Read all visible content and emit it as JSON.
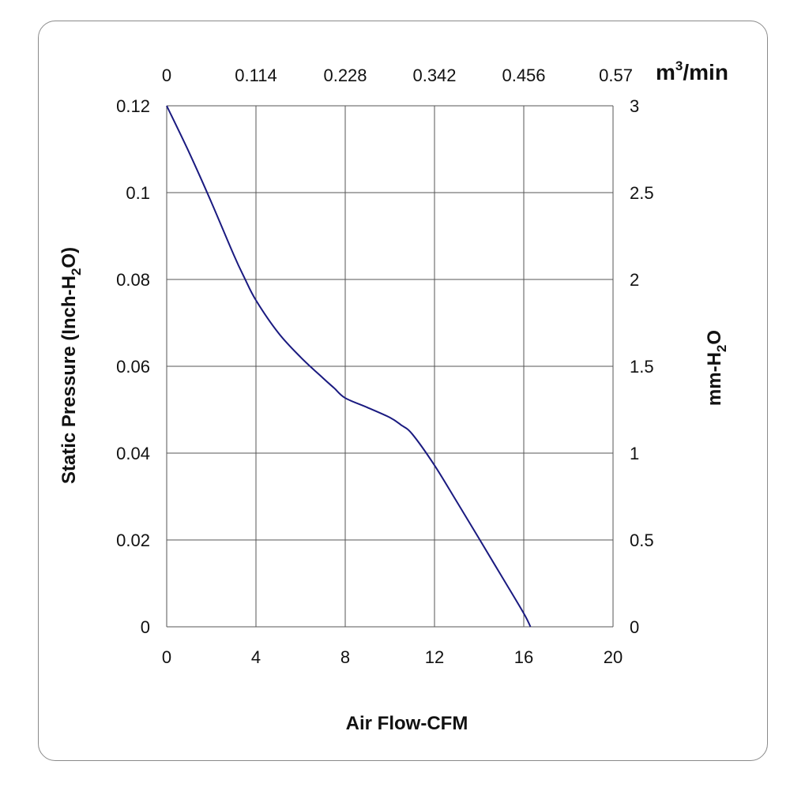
{
  "chart_data": {
    "type": "line",
    "xlabel": "Air Flow-CFM",
    "ylabel": "Static Pressure (Inch-H2O)",
    "ylabel_parts": {
      "main": "Static Pressure (Inch-H",
      "sub": "2",
      "tail": "O)"
    },
    "y2label": "mm-H2O",
    "y2label_parts": {
      "main": "mm-H",
      "sub": "2",
      "tail": "O"
    },
    "x2label": "m3/min",
    "x2label_parts": {
      "main": "m",
      "sup": "3",
      "tail": "/min"
    },
    "xlim": [
      0,
      20
    ],
    "ylim": [
      0,
      0.12
    ],
    "x_ticks": [
      "0",
      "4",
      "8",
      "12",
      "16",
      "20"
    ],
    "y_ticks": [
      "0",
      "0.02",
      "0.04",
      "0.06",
      "0.08",
      "0.1",
      "0.12"
    ],
    "x2_ticks": [
      "0",
      "0.114",
      "0.228",
      "0.342",
      "0.456",
      "0.57"
    ],
    "y2_ticks": [
      "0",
      "0.5",
      "1",
      "1.5",
      "2",
      "2.5",
      "3"
    ],
    "grid": true,
    "line_color": "#1a1a80",
    "series": [
      {
        "x": [
          0,
          1,
          2,
          3,
          3.5,
          4,
          5,
          6,
          7,
          7.5,
          8,
          9,
          10,
          10.5,
          11,
          12,
          13,
          14,
          15,
          16,
          16.3
        ],
        "y": [
          0.12,
          0.1093,
          0.0978,
          0.0857,
          0.0802,
          0.0752,
          0.0677,
          0.0621,
          0.0573,
          0.055,
          0.0527,
          0.0505,
          0.0482,
          0.0465,
          0.0444,
          0.0372,
          0.0288,
          0.0203,
          0.0117,
          0.0031,
          0
        ]
      }
    ]
  }
}
